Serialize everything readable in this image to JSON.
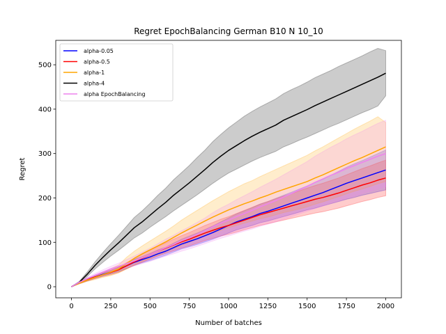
{
  "chart_data": {
    "type": "line",
    "title": "Regret EpochBalancing German B10 N 10_10",
    "xlabel": "Number of batches",
    "ylabel": "Regret",
    "xlim": [
      -100,
      2100
    ],
    "ylim": [
      -25,
      555
    ],
    "xticks": [
      0,
      250,
      500,
      750,
      1000,
      1250,
      1500,
      1750,
      2000
    ],
    "yticks": [
      0,
      100,
      200,
      300,
      400,
      500
    ],
    "legend_position": "upper-left",
    "grid": false,
    "x": [
      0,
      50,
      100,
      150,
      200,
      250,
      300,
      350,
      400,
      450,
      500,
      550,
      600,
      650,
      700,
      750,
      800,
      850,
      900,
      950,
      1000,
      1050,
      1100,
      1150,
      1200,
      1250,
      1300,
      1350,
      1400,
      1450,
      1500,
      1550,
      1600,
      1650,
      1700,
      1750,
      1800,
      1850,
      1900,
      1950,
      2000
    ],
    "series": [
      {
        "name": "alpha-0.05",
        "color": "#0000ff",
        "values": [
          0,
          9,
          16,
          22,
          28,
          33,
          39,
          47,
          55,
          61,
          67,
          74,
          80,
          88,
          96,
          102,
          108,
          115,
          122,
          130,
          138,
          146,
          152,
          158,
          165,
          170,
          176,
          182,
          188,
          194,
          200,
          206,
          212,
          219,
          226,
          233,
          239,
          245,
          251,
          257,
          263
        ],
        "lower": [
          0,
          7,
          13,
          19,
          24,
          29,
          34,
          41,
          48,
          54,
          59,
          65,
          71,
          78,
          85,
          90,
          95,
          101,
          107,
          114,
          121,
          128,
          133,
          138,
          144,
          148,
          153,
          158,
          163,
          168,
          173,
          177,
          182,
          187,
          192,
          197,
          201,
          206,
          210,
          214,
          218
        ],
        "upper": [
          0,
          11,
          19,
          25,
          32,
          37,
          44,
          53,
          62,
          68,
          75,
          83,
          89,
          98,
          107,
          114,
          121,
          129,
          137,
          146,
          155,
          164,
          171,
          178,
          186,
          192,
          199,
          206,
          213,
          220,
          227,
          235,
          242,
          251,
          260,
          269,
          277,
          284,
          292,
          300,
          308
        ]
      },
      {
        "name": "alpha-0.5",
        "color": "#ff0000",
        "values": [
          0,
          9,
          16,
          22,
          27,
          32,
          38,
          47,
          56,
          64,
          72,
          80,
          87,
          94,
          101,
          107,
          114,
          121,
          127,
          133,
          138,
          144,
          150,
          156,
          162,
          167,
          172,
          177,
          182,
          187,
          192,
          197,
          201,
          206,
          211,
          217,
          223,
          229,
          234,
          240,
          245
        ],
        "lower": [
          0,
          7,
          13,
          18,
          23,
          27,
          32,
          40,
          48,
          55,
          62,
          69,
          75,
          81,
          87,
          92,
          98,
          104,
          109,
          114,
          118,
          123,
          128,
          133,
          138,
          142,
          146,
          150,
          154,
          158,
          162,
          166,
          169,
          173,
          177,
          182,
          187,
          192,
          196,
          201,
          205
        ],
        "upper": [
          0,
          11,
          19,
          26,
          31,
          37,
          44,
          54,
          64,
          73,
          82,
          91,
          99,
          107,
          115,
          122,
          130,
          138,
          145,
          152,
          158,
          165,
          172,
          179,
          186,
          192,
          198,
          204,
          210,
          216,
          222,
          228,
          233,
          239,
          245,
          252,
          259,
          266,
          272,
          279,
          285
        ]
      },
      {
        "name": "alpha-1",
        "color": "#ffa500",
        "values": [
          0,
          8,
          15,
          21,
          27,
          33,
          40,
          52,
          64,
          74,
          83,
          92,
          101,
          111,
          121,
          130,
          139,
          148,
          157,
          165,
          173,
          180,
          187,
          193,
          200,
          206,
          213,
          219,
          225,
          231,
          237,
          245,
          252,
          260,
          268,
          276,
          284,
          291,
          299,
          307,
          315
        ],
        "lower": [
          0,
          6,
          12,
          16,
          21,
          25,
          31,
          40,
          49,
          57,
          64,
          71,
          78,
          86,
          93,
          100,
          107,
          114,
          121,
          127,
          133,
          138,
          143,
          148,
          153,
          157,
          162,
          167,
          171,
          175,
          180,
          186,
          191,
          197,
          203,
          209,
          215,
          220,
          226,
          232,
          237
        ],
        "upper": [
          0,
          10,
          18,
          26,
          33,
          41,
          49,
          66,
          80,
          92,
          103,
          114,
          125,
          137,
          150,
          161,
          172,
          183,
          194,
          204,
          214,
          223,
          232,
          239,
          248,
          256,
          264,
          272,
          280,
          288,
          296,
          306,
          315,
          325,
          335,
          345,
          355,
          364,
          373,
          383,
          370
        ]
      },
      {
        "name": "alpha-4",
        "color": "#000000",
        "values": [
          0,
          10,
          28,
          48,
          66,
          83,
          99,
          116,
          133,
          146,
          161,
          176,
          190,
          206,
          220,
          234,
          249,
          264,
          280,
          294,
          307,
          318,
          329,
          339,
          348,
          356,
          364,
          375,
          383,
          391,
          399,
          408,
          416,
          424,
          432,
          440,
          448,
          456,
          464,
          472,
          481
        ],
        "lower": [
          0,
          8,
          23,
          40,
          55,
          69,
          82,
          96,
          110,
          121,
          134,
          146,
          158,
          171,
          183,
          195,
          207,
          220,
          233,
          245,
          256,
          265,
          274,
          283,
          291,
          298,
          305,
          315,
          322,
          330,
          337,
          345,
          353,
          361,
          368,
          376,
          384,
          392,
          399,
          407,
          430
        ],
        "upper": [
          0,
          12,
          33,
          56,
          77,
          97,
          116,
          136,
          156,
          171,
          188,
          206,
          222,
          241,
          257,
          273,
          291,
          308,
          327,
          343,
          358,
          371,
          384,
          395,
          405,
          414,
          423,
          435,
          444,
          452,
          461,
          471,
          479,
          487,
          496,
          504,
          512,
          520,
          529,
          537,
          532
        ]
      },
      {
        "name": "alpha EpochBalancing",
        "color": "#ee82ee",
        "values": [
          0,
          10,
          18,
          26,
          33,
          40,
          46,
          52,
          58,
          65,
          72,
          80,
          88,
          95,
          103,
          110,
          118,
          126,
          135,
          143,
          150,
          158,
          165,
          172,
          180,
          187,
          194,
          202,
          210,
          218,
          226,
          235,
          243,
          251,
          258,
          266,
          273,
          280,
          287,
          294,
          300
        ],
        "lower": [
          0,
          8,
          15,
          22,
          28,
          34,
          39,
          43,
          47,
          52,
          57,
          63,
          69,
          74,
          80,
          85,
          91,
          97,
          103,
          109,
          114,
          120,
          125,
          130,
          136,
          141,
          146,
          152,
          158,
          164,
          170,
          176,
          182,
          188,
          193,
          199,
          204,
          210,
          215,
          220,
          225
        ],
        "upper": [
          0,
          12,
          21,
          30,
          38,
          46,
          53,
          61,
          69,
          78,
          87,
          97,
          107,
          116,
          126,
          135,
          145,
          155,
          167,
          177,
          186,
          196,
          205,
          214,
          224,
          233,
          242,
          252,
          262,
          272,
          282,
          294,
          304,
          314,
          323,
          333,
          342,
          350,
          359,
          368,
          375
        ]
      }
    ]
  }
}
